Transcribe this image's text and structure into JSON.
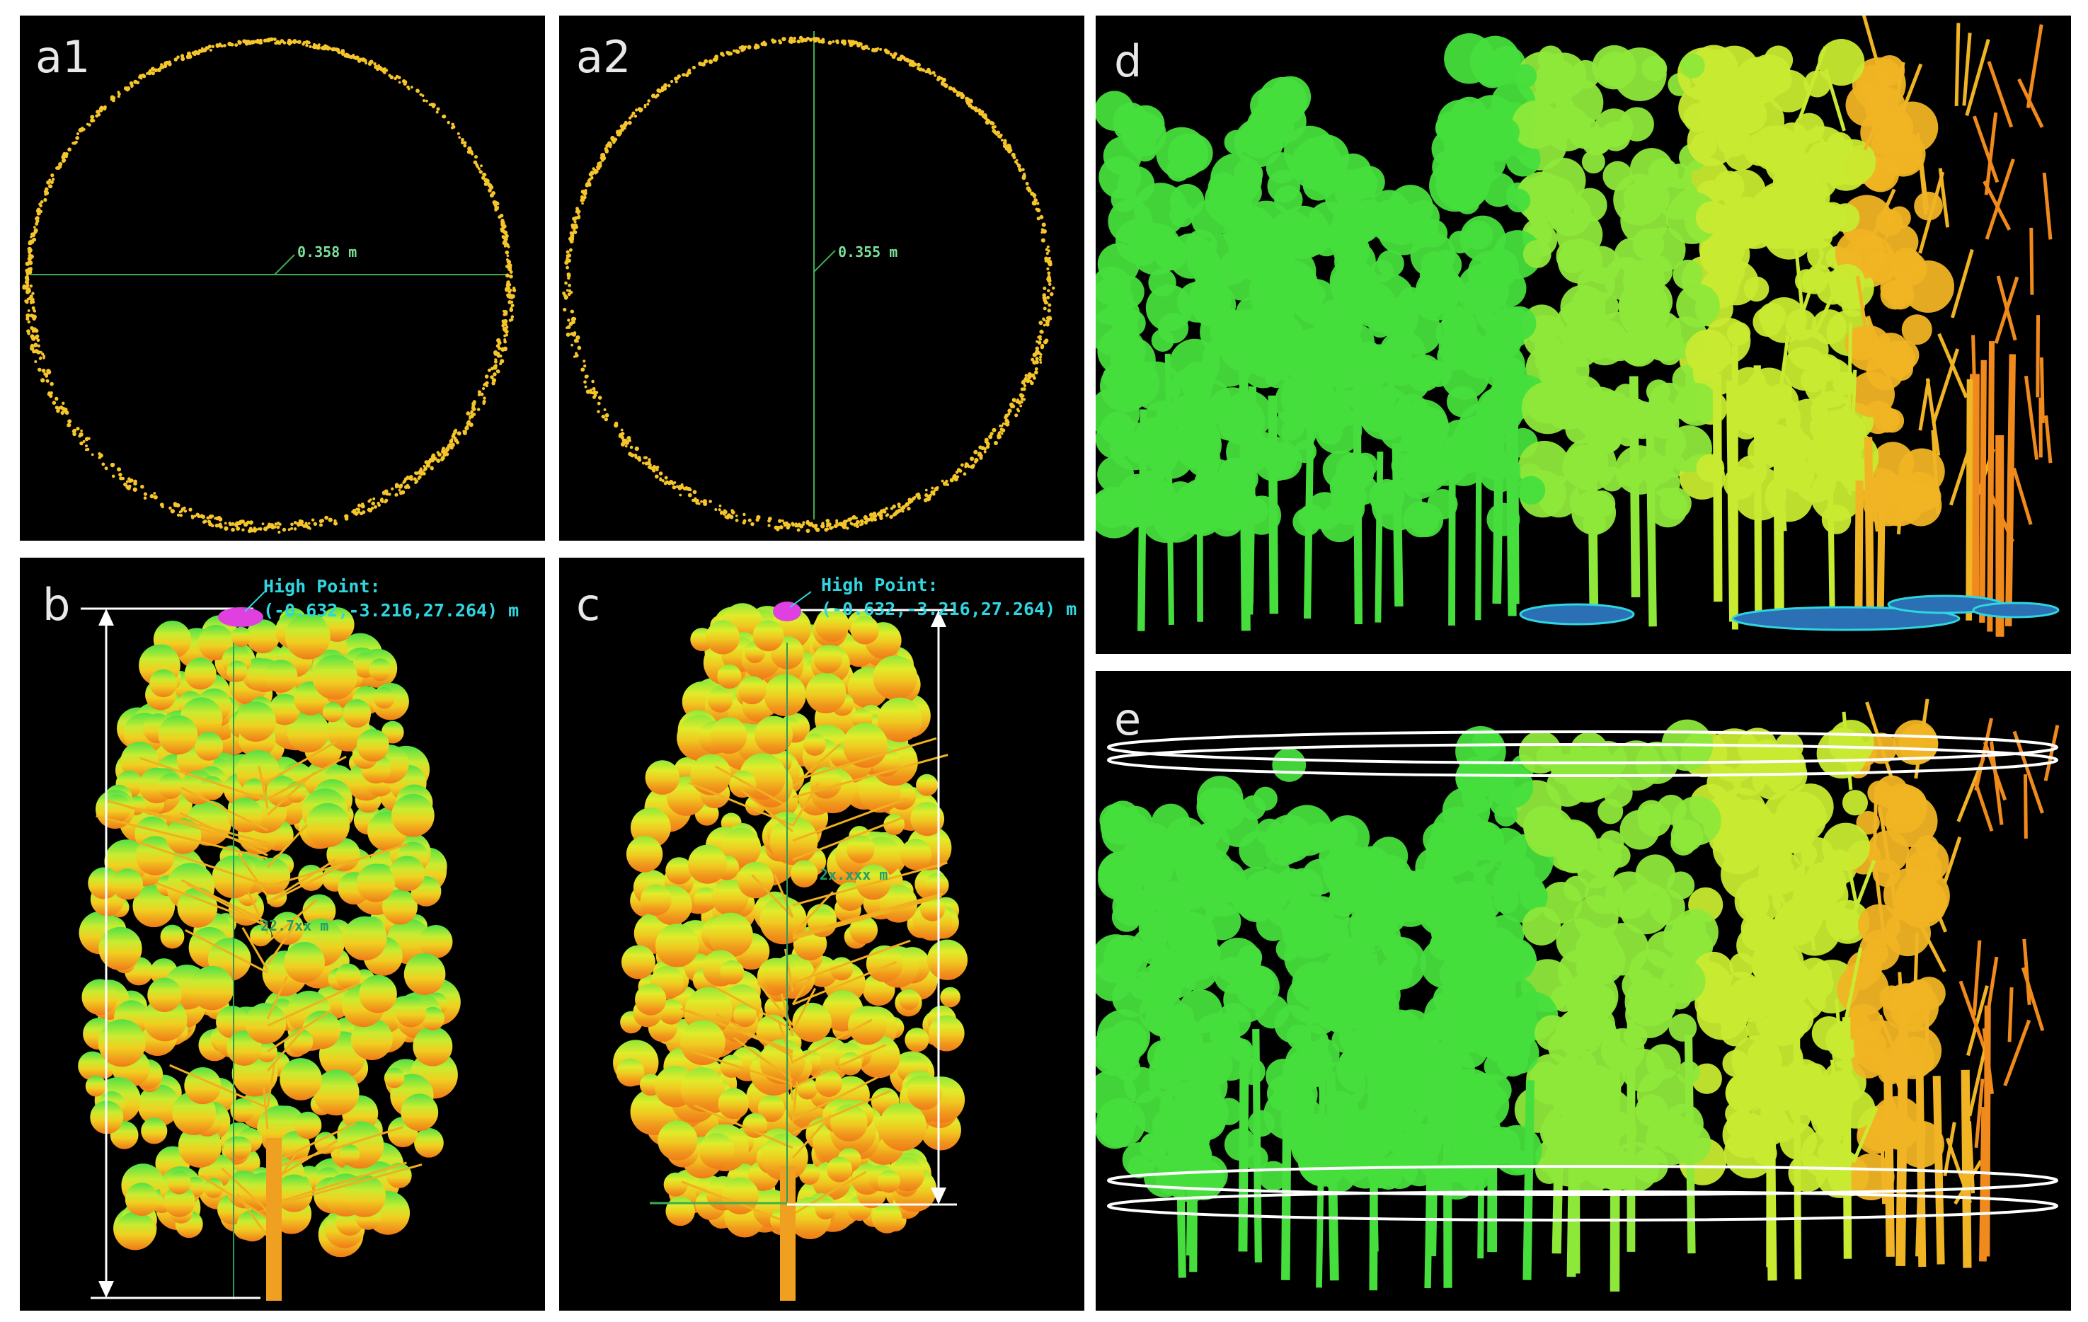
{
  "panels": {
    "a1": {
      "label": "a1",
      "measurement": "0.358 m"
    },
    "a2": {
      "label": "a2",
      "measurement": "0.355 m"
    },
    "b": {
      "label": "b",
      "high_point_title": "High Point:",
      "high_point_coords": "(-0.632,-3.216,27.264) m",
      "height_label": "22.7xx m"
    },
    "c": {
      "label": "c",
      "high_point_title": "High Point:",
      "high_point_coords": "(-0.632,-3.216,27.264) m",
      "height_label": "2x.xxx m"
    },
    "d": {
      "label": "d"
    },
    "e": {
      "label": "e"
    }
  },
  "colors": {
    "background": "#000000",
    "trunk_points": "#f5c52a",
    "measure_line": "#3fae4f",
    "high_point_text": "#2fd6e0",
    "high_point_marker": "#e040e0",
    "arrow": "#ffffff",
    "canopy_top": "#4fe046",
    "canopy_mid": "#e8e82a",
    "canopy_low": "#f08a1c",
    "ground_water": "#2b6fb4"
  }
}
